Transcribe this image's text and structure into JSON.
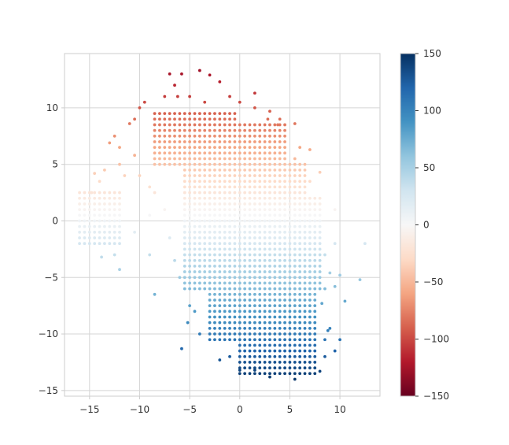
{
  "chart_data": {
    "type": "scatter",
    "title": "",
    "xlabel": "",
    "ylabel": "",
    "xlim": [
      -17.5,
      14
    ],
    "ylim": [
      -15.5,
      14.8
    ],
    "x_ticks": [
      -15,
      -10,
      -5,
      0,
      5,
      10
    ],
    "y_ticks": [
      -15,
      -10,
      -5,
      0,
      5,
      10
    ],
    "grid": true,
    "colormap": "RdBu",
    "colorbar": {
      "min": -150,
      "max": 150,
      "ticks": [
        150,
        100,
        50,
        0,
        -50,
        -100,
        -150
      ],
      "position": "right"
    },
    "point_color": "color value = 6 - 10 * y (in data units)",
    "grid_regions": [
      {
        "x_start": -16,
        "x_end": -12,
        "y_start": -2,
        "y_end": 2.5
      },
      {
        "x_start": -8.5,
        "x_end": -0.5,
        "y_start": 5,
        "y_end": 9.5
      },
      {
        "x_start": -2,
        "x_end": 4.5,
        "y_start": 2.5,
        "y_end": 8.5
      },
      {
        "x_start": -5.5,
        "x_end": 6.5,
        "y_start": -6,
        "y_end": 5
      },
      {
        "x_start": -3,
        "x_end": 7.5,
        "y_start": -10.5,
        "y_end": -5
      },
      {
        "x_start": 0,
        "x_end": 7.5,
        "y_start": -13.5,
        "y_end": -10.5
      },
      {
        "x_start": 5,
        "x_end": 8,
        "y_start": -6,
        "y_end": 2
      }
    ],
    "points": [
      [
        -5.8,
        13
      ],
      [
        -7,
        13
      ],
      [
        -4,
        13.3
      ],
      [
        -3,
        12.9
      ],
      [
        -6.5,
        12
      ],
      [
        -2,
        12.3
      ],
      [
        -7.5,
        11
      ],
      [
        -6.2,
        11
      ],
      [
        -5,
        11
      ],
      [
        -3.5,
        10.5
      ],
      [
        -9.5,
        10.5
      ],
      [
        -10,
        10
      ],
      [
        -1,
        11
      ],
      [
        1.5,
        11.3
      ],
      [
        0,
        10.5
      ],
      [
        1.5,
        10
      ],
      [
        3,
        9.7
      ],
      [
        2.8,
        9
      ],
      [
        3.8,
        8.5
      ],
      [
        4,
        9
      ],
      [
        5.5,
        8.6
      ],
      [
        -10.5,
        9
      ],
      [
        -11,
        8.6
      ],
      [
        -12.5,
        7.5
      ],
      [
        -13,
        6.9
      ],
      [
        -12,
        6.5
      ],
      [
        -10.5,
        5.8
      ],
      [
        -12,
        5
      ],
      [
        -13.5,
        4.5
      ],
      [
        -14.5,
        4.2
      ],
      [
        -11.5,
        4
      ],
      [
        -14,
        3.5
      ],
      [
        -15.5,
        2.5
      ],
      [
        -14.8,
        2.5
      ],
      [
        6,
        6.5
      ],
      [
        7,
        6.3
      ],
      [
        5.5,
        5.5
      ],
      [
        8,
        4.3
      ],
      [
        6.5,
        4.5
      ],
      [
        7,
        3.5
      ],
      [
        7.5,
        2
      ],
      [
        8,
        1.5
      ],
      [
        9.5,
        1
      ],
      [
        -10,
        4
      ],
      [
        -9,
        3
      ],
      [
        -8.5,
        2.5
      ],
      [
        -9,
        0.5
      ],
      [
        -7.5,
        1
      ],
      [
        -10.5,
        -1
      ],
      [
        -7,
        -1.5
      ],
      [
        -12,
        -2
      ],
      [
        -14.5,
        -2
      ],
      [
        -13,
        -1.5
      ],
      [
        -12.5,
        -3
      ],
      [
        -13.8,
        -3.2
      ],
      [
        -12,
        -4.3
      ],
      [
        -9,
        -3
      ],
      [
        -8.5,
        -6.5
      ],
      [
        -6.5,
        -3.5
      ],
      [
        -6,
        -5
      ],
      [
        -5,
        -5
      ],
      [
        -4.5,
        -4.5
      ],
      [
        -5,
        -7.5
      ],
      [
        -4.5,
        -8
      ],
      [
        -5.2,
        -9
      ],
      [
        -4,
        -10
      ],
      [
        -3,
        -9.5
      ],
      [
        -2,
        -8.5
      ],
      [
        -2.5,
        -10
      ],
      [
        -2,
        -12.3
      ],
      [
        -5.8,
        -11.3
      ],
      [
        -1,
        -10.5
      ],
      [
        0,
        -11.5
      ],
      [
        -1,
        -12
      ],
      [
        0,
        -13.2
      ],
      [
        1.5,
        -13.2
      ],
      [
        2.5,
        -12.5
      ],
      [
        3,
        -13.8
      ],
      [
        4.5,
        -13
      ],
      [
        5.5,
        -14
      ],
      [
        7,
        -13.5
      ],
      [
        8,
        -13.3
      ],
      [
        8.5,
        -10.5
      ],
      [
        8.8,
        -9.7
      ],
      [
        9,
        -9.5
      ],
      [
        10,
        -10.5
      ],
      [
        9.5,
        -11.5
      ],
      [
        8.5,
        -12
      ],
      [
        8,
        -5.5
      ],
      [
        8.5,
        -6
      ],
      [
        8.2,
        -7.3
      ],
      [
        9,
        -4.6
      ],
      [
        9.5,
        -5.8
      ],
      [
        10,
        -4.8
      ],
      [
        10.5,
        -7.1
      ],
      [
        12,
        -5.2
      ],
      [
        9.5,
        -2
      ],
      [
        8,
        -3.5
      ],
      [
        12.5,
        -2
      ],
      [
        8.5,
        -3
      ]
    ]
  },
  "colors": {
    "grid": "#d5d5d5",
    "axes_edge": "#cccccc",
    "text": "#333333",
    "colormap_stops": [
      "#67001f",
      "#b2182b",
      "#d6604d",
      "#f4a582",
      "#fddbc7",
      "#f7f7f7",
      "#d1e5f0",
      "#92c5de",
      "#4393c3",
      "#2166ac",
      "#053061"
    ]
  }
}
